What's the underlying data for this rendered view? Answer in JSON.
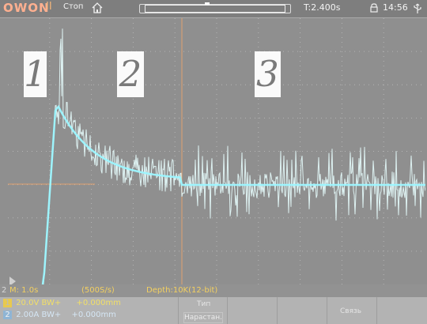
{
  "topbar": {
    "brand": "OWON",
    "run_mark": "II",
    "state": "Стоп",
    "trigger_time": "T:2.400s",
    "clock": "14:56"
  },
  "overlay_labels": [
    "1",
    "2",
    "3"
  ],
  "status": {
    "timebase": "M: 1.0s",
    "sample_rate": "(500S/s)",
    "depth": "Depth:10K(12-bit)",
    "channel_marker": "2"
  },
  "channels": [
    {
      "index": "1",
      "text": "20.0V BW+",
      "offset": "+0.000mm"
    },
    {
      "index": "2",
      "text": "2.00A BW+",
      "offset": "+0.000mm"
    }
  ],
  "menu": {
    "tab_label": "Тип",
    "soft_button": "Нарастан.",
    "right_label": "Связь"
  },
  "colors": {
    "trace": "#cffcff",
    "trace_avg": "#8feeff",
    "cursor": "#f0a46a",
    "grid": "#b5b5b5"
  }
}
